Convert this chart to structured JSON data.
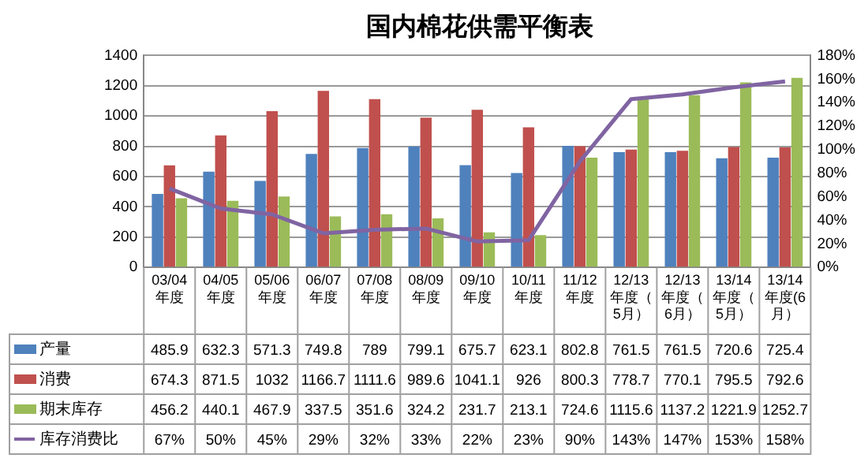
{
  "chart_data": {
    "type": "bar",
    "title": "国内棉花供需平衡表",
    "categories": [
      "03/04年度",
      "04/05年度",
      "05/06年度",
      "06/07年度",
      "07/08年度",
      "08/09年度",
      "09/10年度",
      "10/11年度",
      "11/12年度",
      "12/13年度（5月）",
      "12/13年度（6月）",
      "13/14年度（5月）",
      "13/14年度(6月）"
    ],
    "series": [
      {
        "name": "产量",
        "color": "#4f81bd",
        "values": [
          485.9,
          632.3,
          571.3,
          749.8,
          789,
          799.1,
          675.7,
          623.1,
          802.8,
          761.5,
          761.5,
          720.6,
          725.4
        ]
      },
      {
        "name": "消费",
        "color": "#c0504d",
        "values": [
          674.3,
          871.5,
          1032,
          1166.7,
          1111.6,
          989.6,
          1041.1,
          926,
          800.3,
          778.7,
          770.1,
          795.5,
          792.6
        ]
      },
      {
        "name": "期末库存",
        "color": "#9bbb59",
        "values": [
          456.2,
          440.1,
          467.9,
          337.5,
          351.6,
          324.2,
          231.7,
          213.1,
          724.6,
          1115.6,
          1137.2,
          1221.9,
          1252.7
        ]
      },
      {
        "name": "库存消费比",
        "type": "line",
        "axis": "y2",
        "color": "#8064a2",
        "values": [
          67,
          50,
          45,
          29,
          32,
          33,
          22,
          23,
          90,
          143,
          147,
          153,
          158
        ],
        "value_labels": [
          "67%",
          "50%",
          "45%",
          "29%",
          "32%",
          "33%",
          "22%",
          "23%",
          "90%",
          "143%",
          "147%",
          "153%",
          "158%"
        ]
      }
    ],
    "ylim": [
      0,
      1400
    ],
    "yticks": [
      0,
      200,
      400,
      600,
      800,
      1000,
      1200,
      1400
    ],
    "y2lim": [
      0,
      180
    ],
    "y2ticks": [
      {
        "value": 0,
        "label": "0%"
      },
      {
        "value": 20,
        "label": "20%"
      },
      {
        "value": 40,
        "label": "40%"
      },
      {
        "value": 60,
        "label": "60%"
      },
      {
        "value": 80,
        "label": "80%"
      },
      {
        "value": 100,
        "label": "100%"
      },
      {
        "value": 120,
        "label": "120%"
      },
      {
        "value": 140,
        "label": "140%"
      },
      {
        "value": 160,
        "label": "160%"
      },
      {
        "value": 180,
        "label": "180%"
      }
    ],
    "grid": "y",
    "legend": "bottom",
    "data_labels": true,
    "marker": "none"
  }
}
